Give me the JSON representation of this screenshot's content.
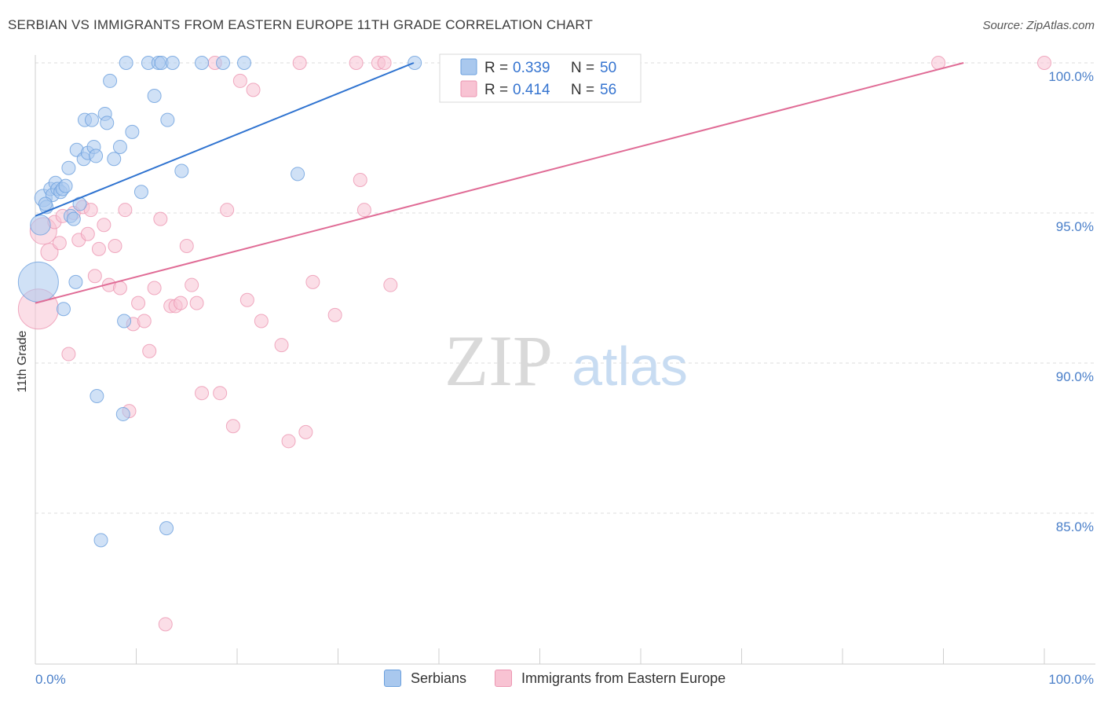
{
  "title": "SERBIAN VS IMMIGRANTS FROM EASTERN EUROPE 11TH GRADE CORRELATION CHART",
  "source": "Source: ZipAtlas.com",
  "watermark": {
    "zip": "ZIP",
    "atlas": "atlas"
  },
  "colors": {
    "blue_fill": "#a9c8ee",
    "blue_stroke": "#6a9fdd",
    "blue_line": "#2f73d0",
    "pink_fill": "#f8c3d3",
    "pink_stroke": "#ec96b2",
    "pink_line": "#e06c96",
    "tick_text": "#4a7fc9",
    "grid": "#dddddd"
  },
  "legend": {
    "serbians": {
      "r_label": "R = ",
      "r_value": "0.339",
      "n_label": "N = ",
      "n_value": "50"
    },
    "immigrants": {
      "r_label": "R = ",
      "r_value": "0.414",
      "n_label": "N = ",
      "n_value": "56"
    }
  },
  "bottom_legend": {
    "serbians": "Serbians",
    "immigrants": "Immigrants from Eastern Europe"
  },
  "chart_data": {
    "type": "scatter",
    "title": "SERBIAN VS IMMIGRANTS FROM EASTERN EUROPE 11TH GRADE CORRELATION CHART",
    "xlabel": "",
    "ylabel": "11th Grade",
    "xlim": [
      0,
      100
    ],
    "ylim": [
      80.0,
      100.7
    ],
    "x_tick_labels": [
      "0.0%",
      "100.0%"
    ],
    "y_ticks": [
      {
        "value": 100,
        "label": "100.0%"
      },
      {
        "value": 95,
        "label": "95.0%"
      },
      {
        "value": 90,
        "label": "90.0%"
      },
      {
        "value": 85,
        "label": "85.0%"
      }
    ],
    "series": [
      {
        "name": "Serbians",
        "r": 0.339,
        "n": 50,
        "trend": [
          [
            0,
            94.9
          ],
          [
            37.5,
            100
          ]
        ],
        "points": [
          [
            0.3,
            92.7,
            3
          ],
          [
            0.5,
            94.6,
            1.5
          ],
          [
            0.8,
            95.5,
            1.3
          ],
          [
            1.1,
            95.2,
            1
          ],
          [
            1.5,
            95.8,
            1
          ],
          [
            1.7,
            95.6,
            1
          ],
          [
            2.0,
            96.0,
            1
          ],
          [
            2.2,
            95.8,
            1
          ],
          [
            2.5,
            95.7,
            1
          ],
          [
            2.7,
            95.8,
            1
          ],
          [
            3.3,
            96.5,
            1
          ],
          [
            3.5,
            94.9,
            1
          ],
          [
            3.8,
            94.8,
            1
          ],
          [
            4.0,
            92.7,
            1
          ],
          [
            4.1,
            97.1,
            1
          ],
          [
            4.4,
            95.3,
            1
          ],
          [
            4.8,
            96.8,
            1
          ],
          [
            4.9,
            98.1,
            1
          ],
          [
            5.2,
            97.0,
            1
          ],
          [
            5.6,
            98.1,
            1
          ],
          [
            5.8,
            97.2,
            1
          ],
          [
            6.9,
            98.3,
            1
          ],
          [
            7.1,
            98.0,
            1
          ],
          [
            7.4,
            99.4,
            1
          ],
          [
            7.8,
            96.8,
            1
          ],
          [
            8.4,
            97.2,
            1
          ],
          [
            8.8,
            91.4,
            1
          ],
          [
            9.0,
            100,
            1
          ],
          [
            9.6,
            97.7,
            1
          ],
          [
            10.5,
            95.7,
            1
          ],
          [
            11.2,
            100,
            1
          ],
          [
            11.8,
            98.9,
            1
          ],
          [
            12.2,
            100,
            1
          ],
          [
            12.5,
            100,
            1
          ],
          [
            13.1,
            98.1,
            1
          ],
          [
            13.6,
            100,
            1
          ],
          [
            14.5,
            96.4,
            1
          ],
          [
            16.5,
            100,
            1
          ],
          [
            18.6,
            100,
            1
          ],
          [
            20.7,
            100,
            1
          ],
          [
            2.8,
            91.8,
            1
          ],
          [
            6.1,
            88.9,
            1
          ],
          [
            8.7,
            88.3,
            1
          ],
          [
            6.5,
            84.1,
            1
          ],
          [
            13.0,
            84.5,
            1
          ],
          [
            26.0,
            96.3,
            1
          ],
          [
            37.6,
            100,
            1
          ],
          [
            1.0,
            95.3,
            1
          ],
          [
            3.0,
            95.9,
            1
          ],
          [
            6.0,
            96.9,
            1
          ]
        ]
      },
      {
        "name": "Immigrants from Eastern Europe",
        "r": 0.414,
        "n": 56,
        "trend": [
          [
            0,
            92.0
          ],
          [
            92,
            100
          ]
        ],
        "points": [
          [
            0.3,
            91.8,
            3
          ],
          [
            0.8,
            94.4,
            2
          ],
          [
            1.4,
            93.7,
            1.3
          ],
          [
            1.9,
            94.7,
            1
          ],
          [
            2.4,
            94.0,
            1
          ],
          [
            2.7,
            94.9,
            1
          ],
          [
            3.3,
            90.3,
            1
          ],
          [
            3.8,
            95.0,
            1
          ],
          [
            4.3,
            94.1,
            1
          ],
          [
            4.7,
            95.2,
            1
          ],
          [
            5.2,
            94.3,
            1
          ],
          [
            5.5,
            95.1,
            1
          ],
          [
            5.9,
            92.9,
            1
          ],
          [
            6.3,
            93.8,
            1
          ],
          [
            6.8,
            94.6,
            1
          ],
          [
            7.3,
            92.6,
            1
          ],
          [
            7.9,
            93.9,
            1
          ],
          [
            8.4,
            92.5,
            1
          ],
          [
            8.9,
            95.1,
            1
          ],
          [
            9.3,
            88.4,
            1
          ],
          [
            9.7,
            91.3,
            1
          ],
          [
            10.2,
            92.0,
            1
          ],
          [
            10.8,
            91.4,
            1
          ],
          [
            11.3,
            90.4,
            1
          ],
          [
            11.8,
            92.5,
            1
          ],
          [
            12.4,
            94.8,
            1
          ],
          [
            12.9,
            81.3,
            1
          ],
          [
            13.4,
            91.9,
            1
          ],
          [
            13.9,
            91.9,
            1
          ],
          [
            14.4,
            92.0,
            1
          ],
          [
            15.0,
            93.9,
            1
          ],
          [
            15.5,
            92.6,
            1
          ],
          [
            16.0,
            92.0,
            1
          ],
          [
            16.5,
            89.0,
            1
          ],
          [
            17.8,
            100,
            1
          ],
          [
            18.3,
            89.0,
            1
          ],
          [
            19.0,
            95.1,
            1
          ],
          [
            19.6,
            87.9,
            1
          ],
          [
            20.3,
            99.4,
            1
          ],
          [
            21.0,
            92.1,
            1
          ],
          [
            21.6,
            99.1,
            1
          ],
          [
            22.4,
            91.4,
            1
          ],
          [
            24.4,
            90.6,
            1
          ],
          [
            25.1,
            87.4,
            1
          ],
          [
            26.2,
            100,
            1
          ],
          [
            26.8,
            87.7,
            1
          ],
          [
            27.5,
            92.7,
            1
          ],
          [
            29.7,
            91.6,
            1
          ],
          [
            31.8,
            100,
            1
          ],
          [
            32.2,
            96.1,
            1
          ],
          [
            32.6,
            95.1,
            1
          ],
          [
            34.0,
            100,
            1
          ],
          [
            34.6,
            100,
            1
          ],
          [
            35.2,
            92.6,
            1
          ],
          [
            89.5,
            100,
            1
          ],
          [
            100,
            100,
            1
          ]
        ]
      }
    ],
    "legend_position": "top-center"
  }
}
